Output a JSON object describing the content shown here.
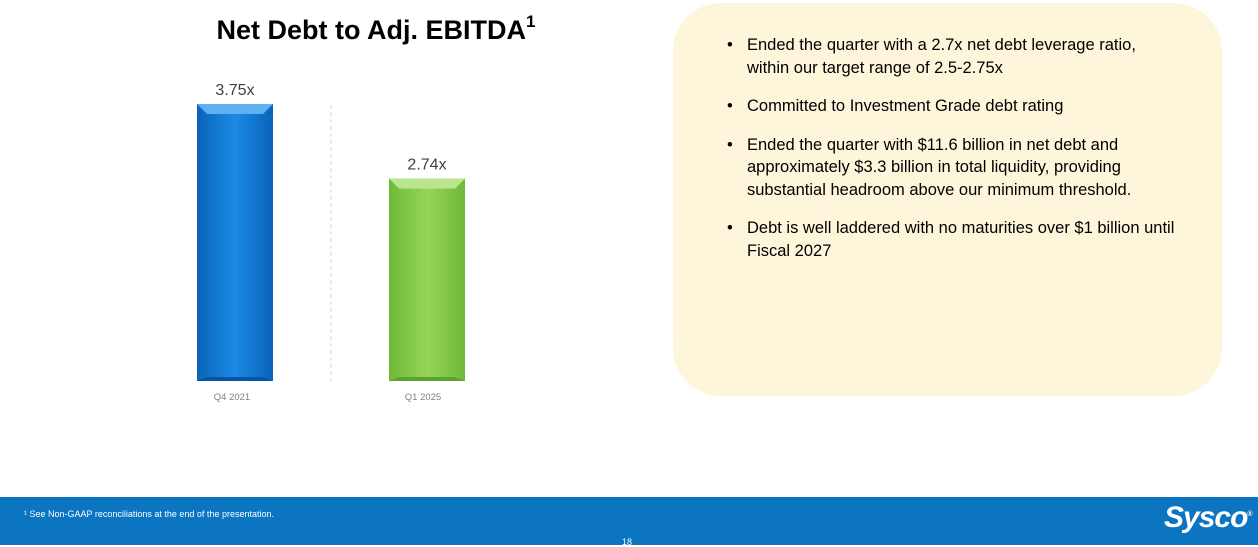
{
  "chart": {
    "title": "Net Debt to Adj. EBITDA",
    "title_superscript": "1"
  },
  "chart_data": {
    "type": "bar",
    "title": "Net Debt to Adj. EBITDA",
    "categories": [
      "Q4 2021",
      "Q1 2025"
    ],
    "values": [
      3.75,
      2.74
    ],
    "data_labels": [
      "3.75x",
      "2.74x"
    ],
    "xlabel": "",
    "ylabel": "",
    "ylim": [
      0,
      3.75
    ],
    "grid": false,
    "legend": "none",
    "colors": [
      "#1a86e0",
      "#8ed04f"
    ]
  },
  "panel": {
    "bullets": [
      "Ended the quarter with a 2.7x net debt leverage ratio, within our target range of 2.5-2.75x",
      "Committed to Investment Grade debt rating",
      "Ended the quarter with $11.6 billion in net debt and approximately $3.3 billion in total liquidity, providing substantial headroom above our minimum threshold.",
      "Debt is well laddered with no maturities over $1 billion until Fiscal 2027"
    ]
  },
  "footer": {
    "footnote": "¹ See Non-GAAP reconciliations at the end of the presentation.",
    "page_number": "18",
    "logo_text": "Sysco",
    "logo_mark": "®"
  },
  "colors": {
    "footer_bg": "#0b75c2",
    "panel_bg": "#fdf6da"
  }
}
